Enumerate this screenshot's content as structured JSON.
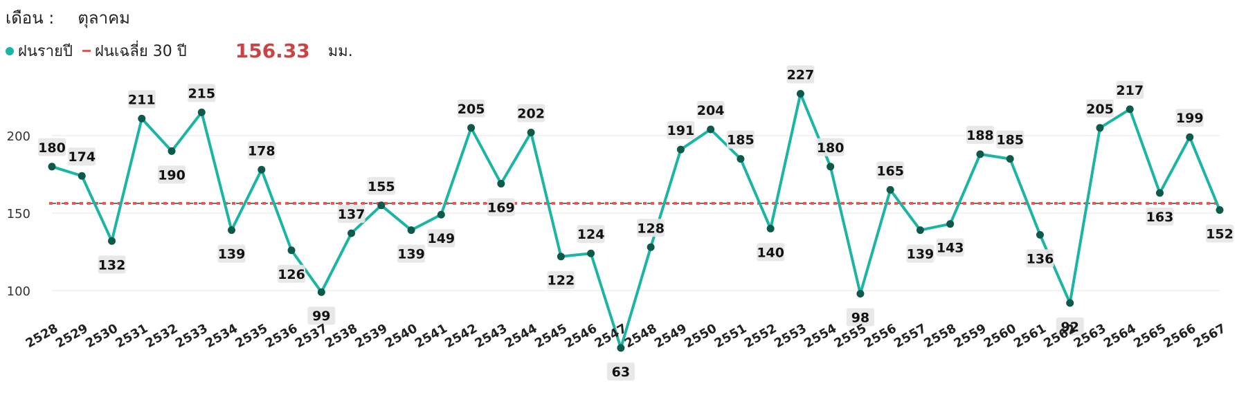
{
  "header": {
    "month_label": "เดือน :",
    "month_value": "ตุลาคม"
  },
  "legend": {
    "series_name": "ฝนรายปี",
    "avg_name": "ฝนเฉลี่ย 30 ปี",
    "avg_value": "156.33",
    "unit": "มม."
  },
  "colors": {
    "series": "#1ab5a3",
    "marker": "#0e5a4a",
    "average": "#ef5350",
    "label_bg": "#e6e6e6",
    "grid": "#e5e5e5"
  },
  "chart_data": {
    "type": "line",
    "x": [
      "2528",
      "2529",
      "2530",
      "2531",
      "2532",
      "2533",
      "2534",
      "2535",
      "2536",
      "2537",
      "2538",
      "2539",
      "2540",
      "2541",
      "2542",
      "2543",
      "2544",
      "2545",
      "2546",
      "2547",
      "2548",
      "2549",
      "2550",
      "2551",
      "2552",
      "2553",
      "2554",
      "2555",
      "2556",
      "2557",
      "2558",
      "2559",
      "2560",
      "2561",
      "2562",
      "2563",
      "2564",
      "2565",
      "2566",
      "2567"
    ],
    "series": [
      {
        "name": "ฝนรายปี",
        "values": [
          180,
          174,
          132,
          211,
          190,
          215,
          139,
          178,
          126,
          99,
          137,
          155,
          139,
          149,
          205,
          169,
          202,
          122,
          124,
          63,
          128,
          191,
          204,
          185,
          140,
          227,
          180,
          98,
          165,
          139,
          143,
          188,
          185,
          136,
          92,
          205,
          217,
          163,
          199,
          152
        ]
      }
    ],
    "average": 156.33,
    "y_ticks": [
      100,
      150,
      200
    ],
    "ylim": [
      55,
      235
    ],
    "grid": true,
    "legend_position": "top-left"
  }
}
